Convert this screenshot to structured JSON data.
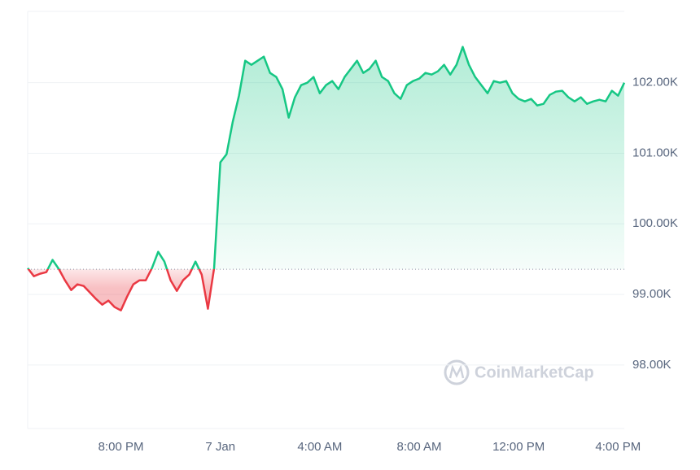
{
  "chart_data": {
    "type": "line",
    "categories": [
      null,
      null,
      null,
      null,
      null,
      null,
      null,
      null,
      null,
      null,
      null,
      null,
      null,
      null,
      null,
      "8:00 PM",
      null,
      null,
      null,
      null,
      null,
      null,
      null,
      null,
      null,
      null,
      null,
      null,
      null,
      null,
      null,
      "7 Jan",
      null,
      null,
      null,
      null,
      null,
      null,
      null,
      null,
      null,
      null,
      null,
      null,
      null,
      null,
      null,
      "4:00 AM",
      null,
      null,
      null,
      null,
      null,
      null,
      null,
      null,
      null,
      null,
      null,
      null,
      null,
      null,
      null,
      "8:00 AM",
      null,
      null,
      null,
      null,
      null,
      null,
      null,
      null,
      null,
      null,
      null,
      null,
      null,
      null,
      null,
      "12:00 PM",
      null,
      null,
      null,
      null,
      null,
      null,
      null,
      null,
      null,
      null,
      null,
      null,
      null,
      null,
      null,
      "4:00 PM",
      null
    ],
    "values": [
      99373,
      99258,
      99293,
      99316,
      99489,
      99362,
      99200,
      99062,
      99143,
      99120,
      99028,
      98935,
      98855,
      98912,
      98820,
      98774,
      98970,
      99143,
      99200,
      99200,
      99373,
      99604,
      99465,
      99200,
      99050,
      99200,
      99281,
      99465,
      99281,
      98797,
      99373,
      100871,
      100986,
      101447,
      101816,
      102311,
      102253,
      102311,
      102369,
      102138,
      102081,
      101908,
      101505,
      101793,
      101965,
      102000,
      102081,
      101850,
      101965,
      102023,
      101908,
      102081,
      102196,
      102311,
      102138,
      102196,
      102311,
      102081,
      102023,
      101850,
      101770,
      101965,
      102023,
      102058,
      102138,
      102115,
      102161,
      102253,
      102115,
      102253,
      102507,
      102253,
      102081,
      101965,
      101850,
      102023,
      102000,
      102023,
      101850,
      101770,
      101735,
      101770,
      101677,
      101700,
      101827,
      101873,
      101885,
      101793,
      101735,
      101793,
      101700,
      101735,
      101758,
      101735,
      101885,
      101816,
      102000
    ],
    "color_up": "#16c784",
    "color_down": "#ea3943",
    "reference_line": 99357,
    "ylim": [
      97100,
      103010
    ],
    "yticks": [
      {
        "value": 98000,
        "label": "98.00K"
      },
      {
        "value": 99000,
        "label": "99.00K"
      },
      {
        "value": 100000,
        "label": "100.00K"
      },
      {
        "value": 101000,
        "label": "101.00K"
      },
      {
        "value": 102000,
        "label": "102.00K"
      }
    ],
    "grid": true,
    "watermark": "CoinMarketCap"
  }
}
